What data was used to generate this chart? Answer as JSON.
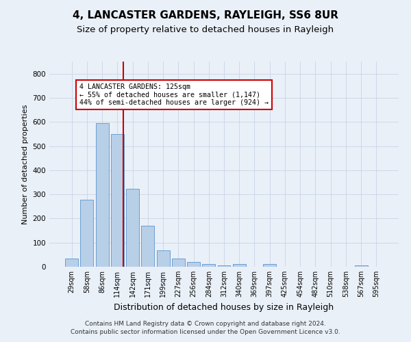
{
  "title": "4, LANCASTER GARDENS, RAYLEIGH, SS6 8UR",
  "subtitle": "Size of property relative to detached houses in Rayleigh",
  "xlabel": "Distribution of detached houses by size in Rayleigh",
  "ylabel": "Number of detached properties",
  "categories": [
    "29sqm",
    "58sqm",
    "86sqm",
    "114sqm",
    "142sqm",
    "171sqm",
    "199sqm",
    "227sqm",
    "256sqm",
    "284sqm",
    "312sqm",
    "340sqm",
    "369sqm",
    "397sqm",
    "425sqm",
    "454sqm",
    "482sqm",
    "510sqm",
    "538sqm",
    "567sqm",
    "595sqm"
  ],
  "values": [
    35,
    278,
    594,
    549,
    323,
    169,
    67,
    35,
    20,
    10,
    7,
    10,
    0,
    10,
    0,
    0,
    0,
    0,
    0,
    5,
    0
  ],
  "bar_color": "#b8cfe8",
  "bar_edge_color": "#6a9fd4",
  "vline_color": "#cc0000",
  "annotation_line1": "4 LANCASTER GARDENS: 125sqm",
  "annotation_line2": "← 55% of detached houses are smaller (1,147)",
  "annotation_line3": "44% of semi-detached houses are larger (924) →",
  "annotation_box_color": "white",
  "annotation_box_edgecolor": "#cc0000",
  "ylim": [
    0,
    850
  ],
  "yticks": [
    0,
    100,
    200,
    300,
    400,
    500,
    600,
    700,
    800
  ],
  "grid_color": "#c8d4e4",
  "background_color": "#eaf0f8",
  "footnote_line1": "Contains HM Land Registry data © Crown copyright and database right 2024.",
  "footnote_line2": "Contains public sector information licensed under the Open Government Licence v3.0.",
  "title_fontsize": 11,
  "subtitle_fontsize": 9.5,
  "xlabel_fontsize": 9,
  "ylabel_fontsize": 8,
  "tick_fontsize": 7,
  "footnote_fontsize": 6.5,
  "vline_xindex": 3.4
}
